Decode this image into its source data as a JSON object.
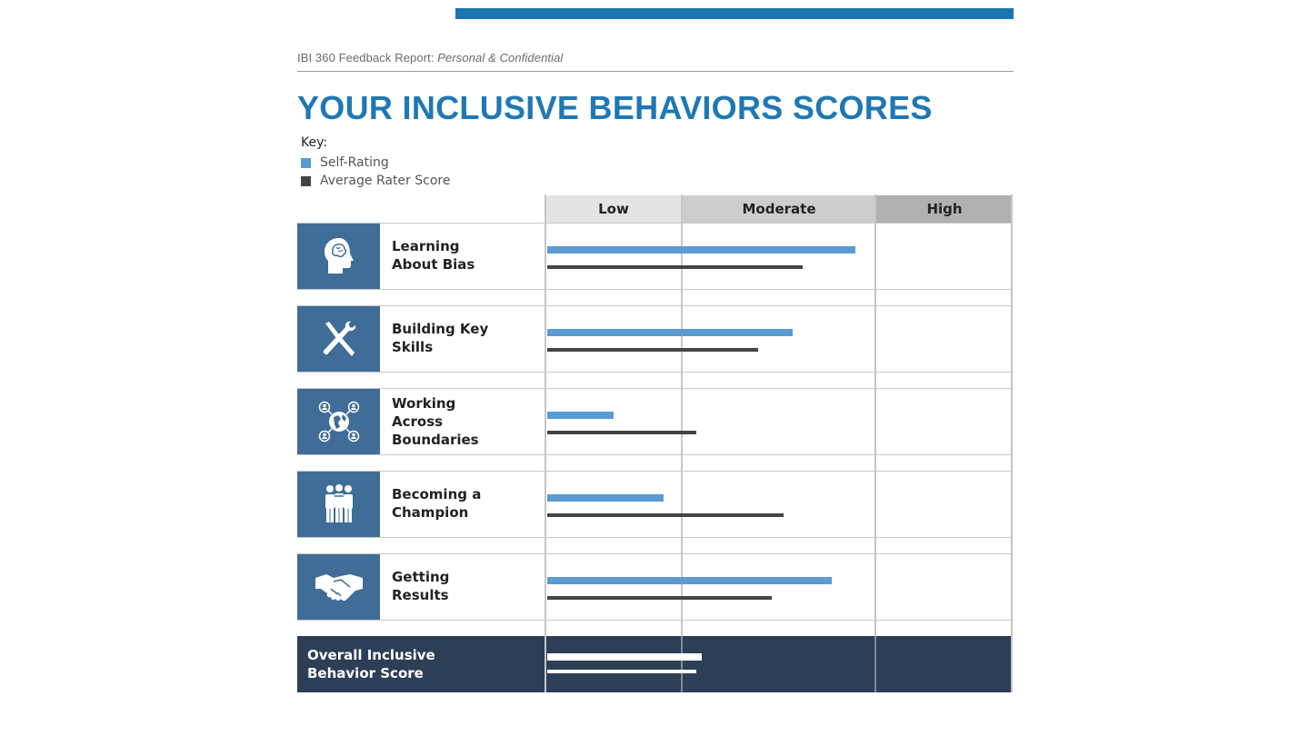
{
  "header": {
    "report_title": "IBI 360 Feedback Report:",
    "report_subtitle": "Personal & Confidential"
  },
  "page_title": "YOUR INCLUSIVE BEHAVIORS SCORES",
  "key": {
    "title": "Key:",
    "self_label": "Self-Rating",
    "avg_label": "Average Rater Score",
    "self_color": "#5a9bd4",
    "avg_color": "#444444"
  },
  "columns": [
    "Low",
    "Moderate",
    "High"
  ],
  "rows": [
    {
      "line1": "Learning",
      "line2": "About Bias",
      "line3": "",
      "icon": "head-brain-icon"
    },
    {
      "line1": "Building Key",
      "line2": "Skills",
      "line3": "",
      "icon": "wrench-screwdriver-icon"
    },
    {
      "line1": "Working",
      "line2": "Across",
      "line3": "Boundaries",
      "icon": "globe-network-icon"
    },
    {
      "line1": "Becoming a",
      "line2": "Champion",
      "line3": "",
      "icon": "people-group-icon"
    },
    {
      "line1": "Getting",
      "line2": "Results",
      "line3": "",
      "icon": "handshake-icon"
    }
  ],
  "overall": {
    "line1": "Overall Inclusive",
    "line2": "Behavior Score"
  },
  "chart_data": {
    "type": "bar",
    "categories": [
      "Learning About Bias",
      "Building Key Skills",
      "Working Across Boundaries",
      "Becoming a Champion",
      "Getting Results",
      "Overall Inclusive Behavior Score"
    ],
    "bands": [
      "Low",
      "Moderate",
      "High"
    ],
    "series": [
      {
        "name": "Self-Rating",
        "values": [
          1.89,
          1.57,
          0.49,
          0.86,
          1.77,
          1.1
        ]
      },
      {
        "name": "Average Rater Score",
        "values": [
          1.62,
          1.39,
          1.07,
          1.52,
          1.46,
          1.07
        ]
      }
    ],
    "ylim": [
      0,
      3
    ]
  }
}
